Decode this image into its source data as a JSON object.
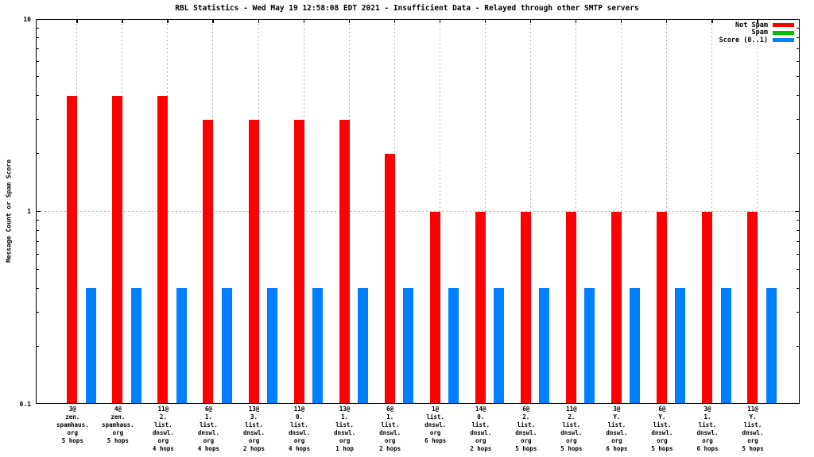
{
  "page": {
    "background": "#ffffff"
  },
  "chart_data": {
    "type": "bar",
    "title": "RBL Statistics - Wed May 19 12:58:08 EDT 2021 - Insufficient Data - Relayed through other SMTP servers",
    "ylabel": "Message Count or Spam Score",
    "yscale": "log",
    "ylim": [
      0.1,
      10
    ],
    "ytick_labels": [
      "10",
      "1",
      "0.1"
    ],
    "grid": {
      "horizontal_line_at": 1,
      "vertical": "per-category",
      "style": "dotted",
      "color": "#b4b4b4"
    },
    "legend_position": "top-right-inside",
    "legend": [
      {
        "label": "Not Spam",
        "color": "#ff0000"
      },
      {
        "label": "Spam",
        "color": "#00c000"
      },
      {
        "label": "Score (0..1)",
        "color": "#0080ff"
      }
    ],
    "categories": [
      {
        "lines": [
          "3@",
          "zen.",
          "spamhaus.",
          "org",
          "5 hops"
        ]
      },
      {
        "lines": [
          "4@",
          "zen.",
          "spamhaus.",
          "org",
          "5 hops"
        ]
      },
      {
        "lines": [
          "11@",
          "2.",
          "list.",
          "dnswl.",
          "org",
          "4 hops"
        ]
      },
      {
        "lines": [
          "6@",
          "1.",
          "list.",
          "dnswl.",
          "org",
          "4 hops"
        ]
      },
      {
        "lines": [
          "13@",
          "3.",
          "list.",
          "dnswl.",
          "org",
          "2 hops"
        ]
      },
      {
        "lines": [
          "11@",
          "0.",
          "list.",
          "dnswl.",
          "org",
          "4 hops"
        ]
      },
      {
        "lines": [
          "13@",
          "1.",
          "list.",
          "dnswl.",
          "org",
          "1 hop"
        ]
      },
      {
        "lines": [
          "6@",
          "1.",
          "list.",
          "dnswl.",
          "org",
          "2 hops"
        ]
      },
      {
        "lines": [
          "1@",
          "list.",
          "dnswl.",
          "org",
          "6 hops"
        ]
      },
      {
        "lines": [
          "14@",
          "0.",
          "list.",
          "dnswl.",
          "org",
          "2 hops"
        ]
      },
      {
        "lines": [
          "6@",
          "2.",
          "list.",
          "dnswl.",
          "org",
          "5 hops"
        ]
      },
      {
        "lines": [
          "11@",
          "2.",
          "list.",
          "dnswl.",
          "org",
          "5 hops"
        ]
      },
      {
        "lines": [
          "3@",
          "Y.",
          "list.",
          "dnswl.",
          "org",
          "6 hops"
        ]
      },
      {
        "lines": [
          "6@",
          "Y.",
          "list.",
          "dnswl.",
          "org",
          "5 hops"
        ]
      },
      {
        "lines": [
          "3@",
          "1.",
          "list.",
          "dnswl.",
          "org",
          "6 hops"
        ]
      },
      {
        "lines": [
          "11@",
          "Y.",
          "list.",
          "dnswl.",
          "org",
          "5 hops"
        ]
      }
    ],
    "series": [
      {
        "name": "Not Spam",
        "color": "#ff0000",
        "values": [
          4,
          4,
          4,
          3,
          3,
          3,
          3,
          2,
          1,
          1,
          1,
          1,
          1,
          1,
          1,
          1
        ]
      },
      {
        "name": "Spam",
        "color": "#00c000",
        "values": [
          0,
          0,
          0,
          0,
          0,
          0,
          0,
          0,
          0,
          0,
          0,
          0,
          0,
          0,
          0,
          0
        ]
      },
      {
        "name": "Score (0..1)",
        "color": "#0080ff",
        "values": [
          0.4,
          0.4,
          0.4,
          0.4,
          0.4,
          0.4,
          0.4,
          0.4,
          0.4,
          0.4,
          0.4,
          0.4,
          0.4,
          0.4,
          0.4,
          0.4
        ]
      }
    ]
  }
}
